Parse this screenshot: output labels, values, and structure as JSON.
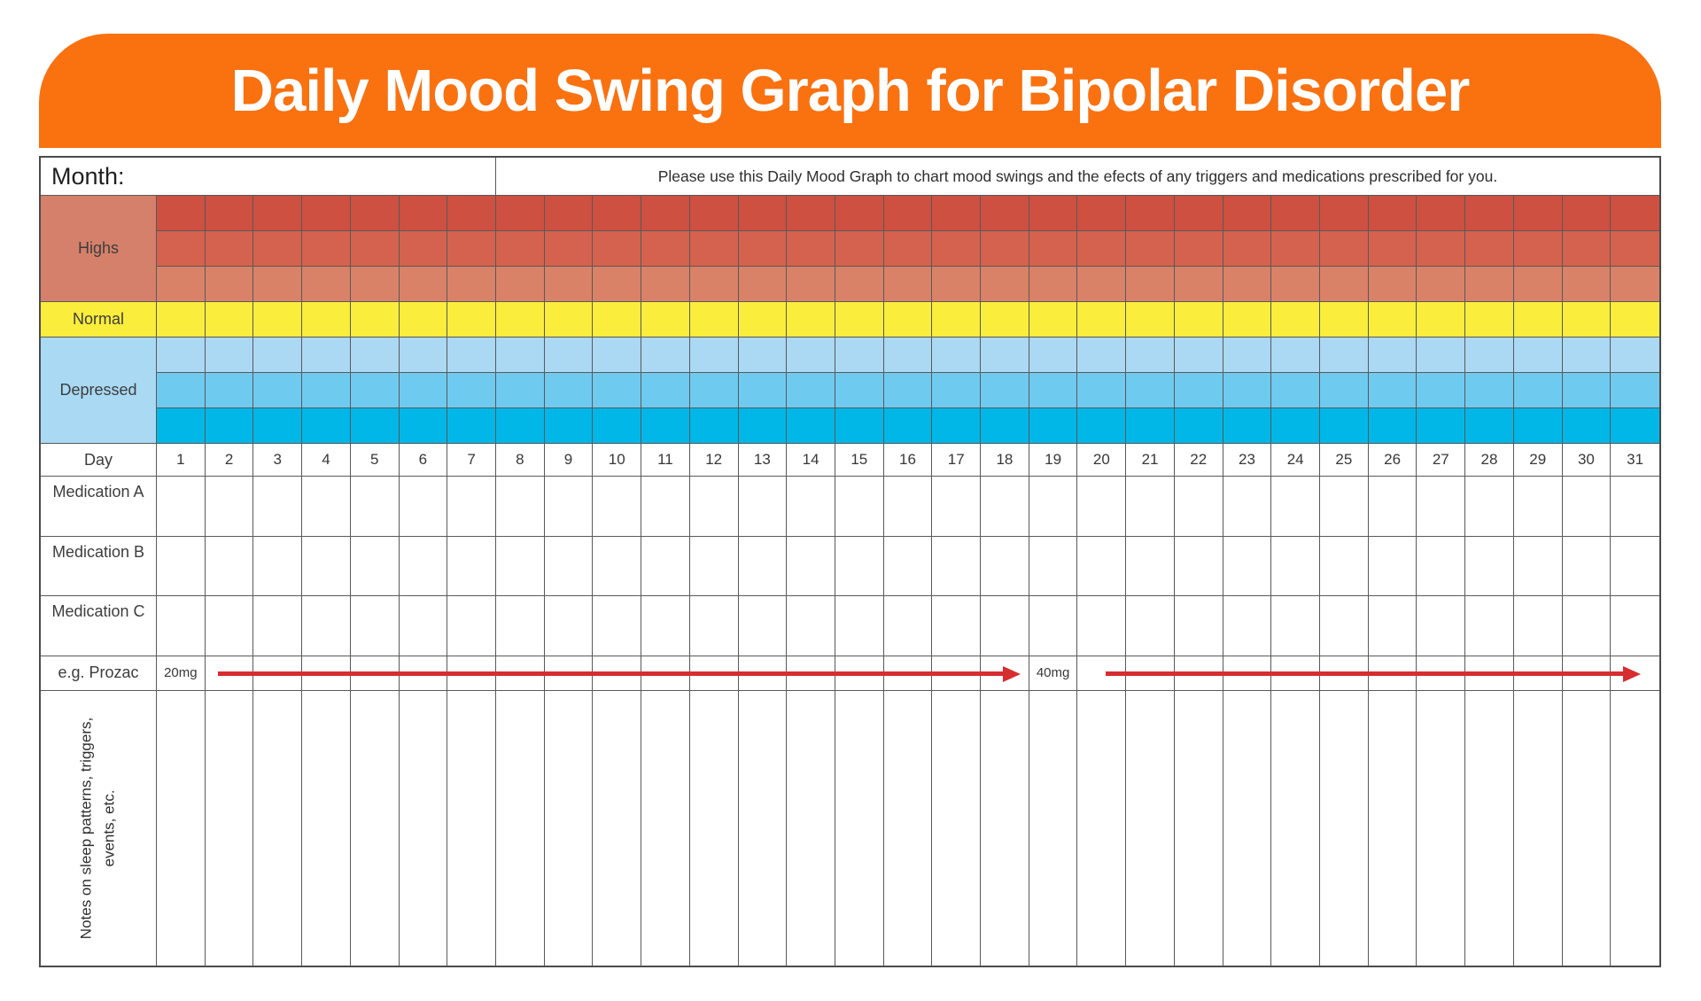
{
  "banner": {
    "title": "Daily Mood Swing Graph for Bipolar Disorder",
    "bg_color": "#fa7110",
    "text_color": "#ffffff"
  },
  "header": {
    "month_label": "Month:",
    "instruction": "Please use this Daily Mood Graph to chart mood swings and the efects of any triggers and medications prescribed for you."
  },
  "mood_bands": [
    {
      "label": "Highs",
      "label_bg": "#d5806a",
      "row_colors": [
        "#cd5041",
        "#d5624e",
        "#d98267"
      ]
    },
    {
      "label": "Normal",
      "label_bg": "#faed3c",
      "row_colors": [
        "#faed3c"
      ]
    },
    {
      "label": "Depressed",
      "label_bg": "#a9d9f3",
      "row_colors": [
        "#abd8f3",
        "#6fcaf0",
        "#00b7e8"
      ]
    }
  ],
  "day_row": {
    "label": "Day",
    "days": [
      "1",
      "2",
      "3",
      "4",
      "5",
      "6",
      "7",
      "8",
      "9",
      "10",
      "11",
      "12",
      "13",
      "14",
      "15",
      "16",
      "17",
      "18",
      "19",
      "20",
      "21",
      "22",
      "23",
      "24",
      "25",
      "26",
      "27",
      "28",
      "29",
      "30",
      "31"
    ]
  },
  "medication_rows": [
    {
      "label": "Medication A"
    },
    {
      "label": "Medication B"
    },
    {
      "label": "Medication C"
    }
  ],
  "example_row": {
    "label": "e.g. Prozac",
    "dose1_label": "20mg",
    "dose1_day": 1,
    "dose2_label": "40mg",
    "dose2_day": 19,
    "arrow_color": "#d62d30"
  },
  "notes_row": {
    "label_line1": "Notes on sleep patterns, triggers,",
    "label_line2": "events, etc."
  },
  "grid": {
    "line_color": "#595959",
    "outer_border_color": "#4b4b4b"
  }
}
